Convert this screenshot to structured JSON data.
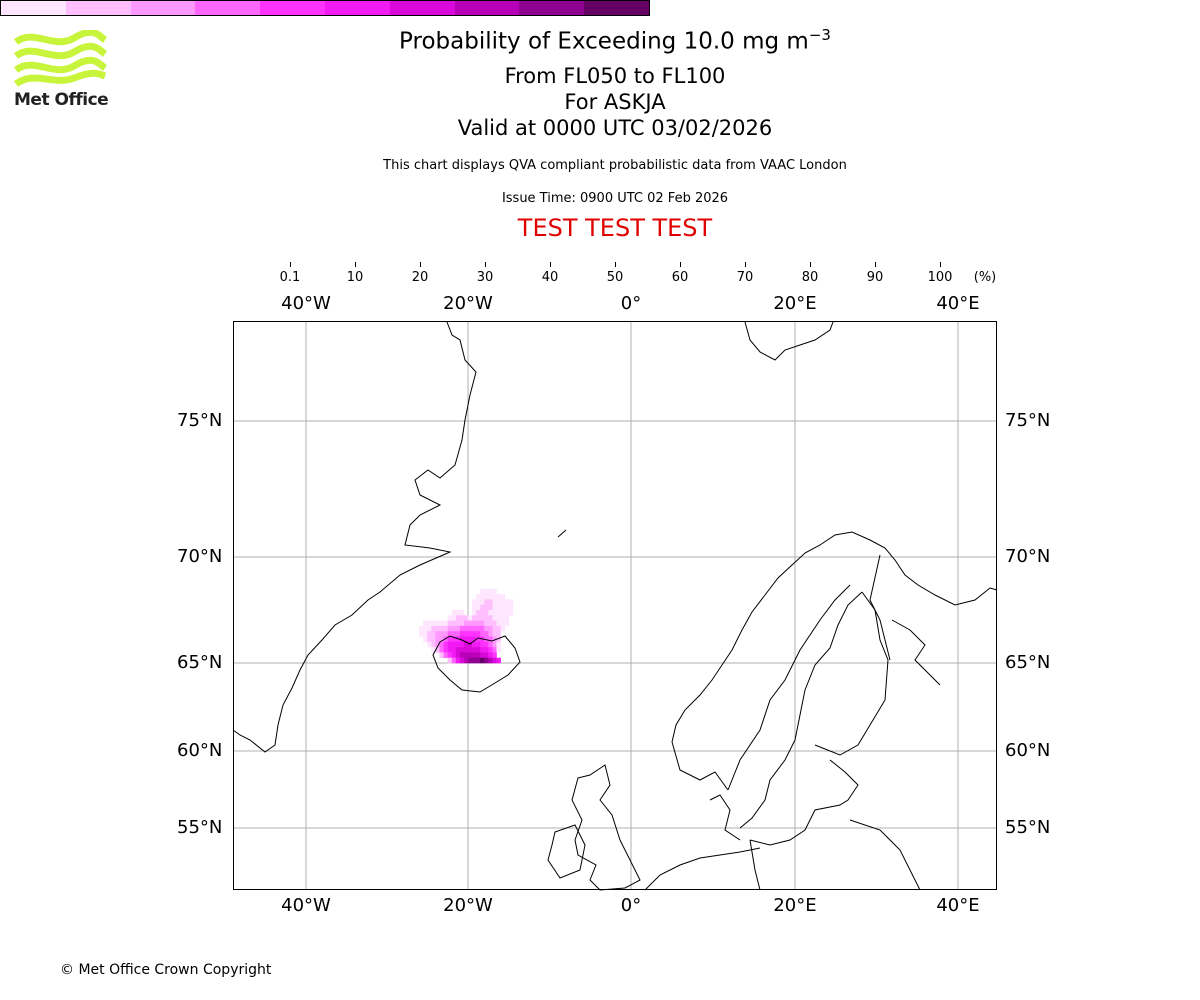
{
  "logo": {
    "text": "Met Office",
    "color": "#c8f53c"
  },
  "header": {
    "title": "Probability of Exceeding 10.0 mg m",
    "title_sup": "−3",
    "levels": "From FL050 to FL100",
    "volcano": "For ASKJA",
    "valid": "Valid at 0000 UTC 03/02/2026",
    "subtitle": "This chart displays QVA compliant probabilistic data from VAAC London",
    "issue_time": "Issue Time: 0900 UTC 02 Feb 2026",
    "test_banner": "TEST TEST TEST"
  },
  "chart_data": {
    "type": "heatmap",
    "title": "Probability of Exceeding 10.0 mg m−3",
    "colorbar": {
      "ticks": [
        "0.1",
        "10",
        "20",
        "30",
        "40",
        "50",
        "60",
        "70",
        "80",
        "90",
        "100"
      ],
      "unit": "(%)",
      "colors": [
        "#ffe6ff",
        "#ffbfff",
        "#ff99ff",
        "#ff66ff",
        "#ff33ff",
        "#f21af2",
        "#d90ad9",
        "#b800b8",
        "#900090",
        "#660066"
      ]
    },
    "lon_ticks": [
      "40°W",
      "20°W",
      "0°",
      "20°E",
      "40°E"
    ],
    "lat_ticks": [
      "75°N",
      "70°N",
      "65°N",
      "60°N",
      "55°N"
    ],
    "grid": true,
    "plume": {
      "lon_start": -26,
      "lon_step": 0.5,
      "lat_start": 68.5,
      "lat_step": -0.25,
      "levels_note": "digit = colour band index (1..10, a=10), 0 = none",
      "rows": [
        "00000000000000011110000",
        "00000000000000111111100",
        "00000000000001112211111",
        "00000000000001122211111",
        "00000000111001222111111",
        "00000001122212222211110",
        "01111112222333332221110",
        "11122223334444443322100",
        "11223334445555544322000",
        "01223345556666554432000",
        "00123456666776655431000",
        "00012456677777766541000",
        "00000245678888877650000",
        "000000024678999a9876000"
      ]
    }
  },
  "footer": {
    "copyright": "© Met Office Crown Copyright"
  }
}
